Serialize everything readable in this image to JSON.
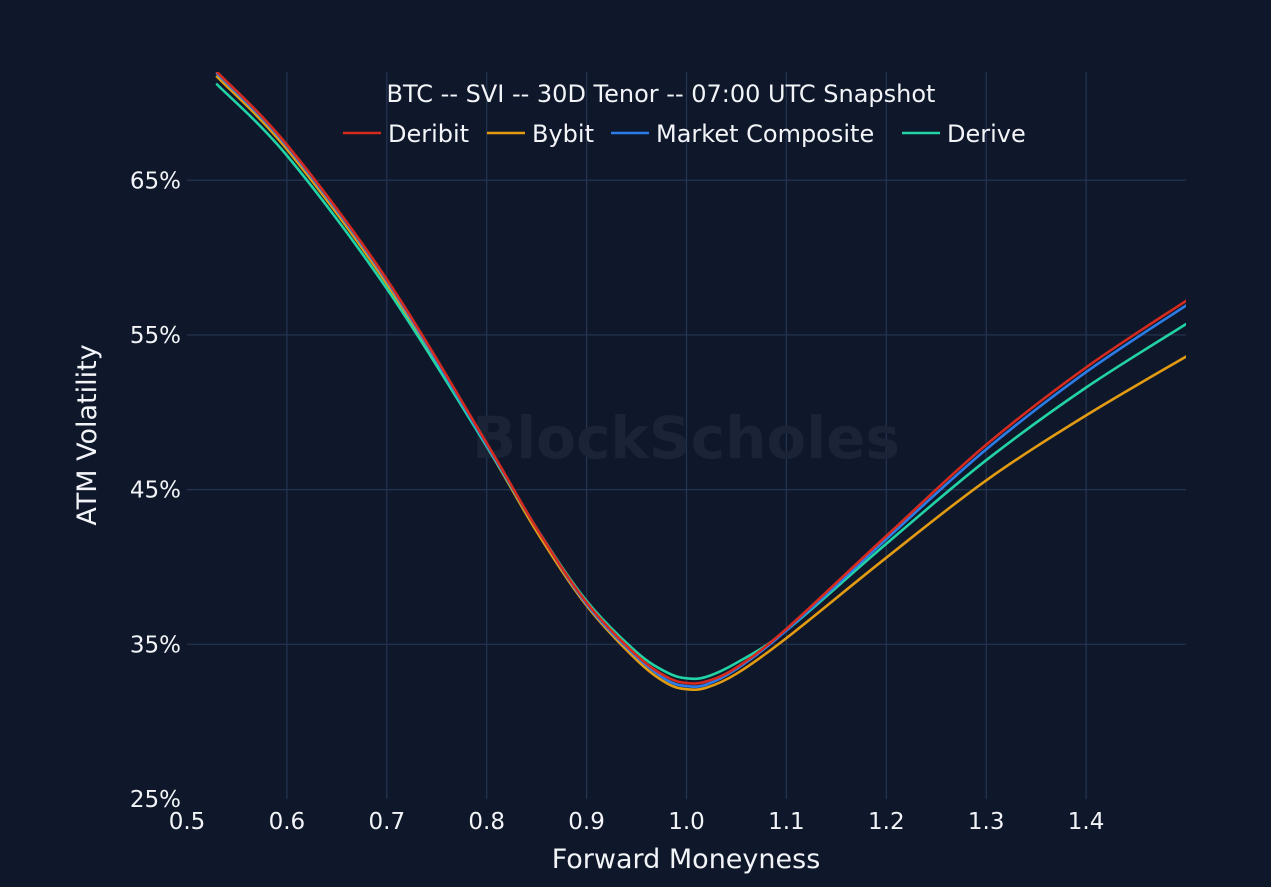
{
  "watermark": "BlockScholes",
  "chart_data": {
    "type": "line",
    "title": "BTC -- SVI -- 30D Tenor -- 07:00 UTC Snapshot",
    "xlabel": "Forward Moneyness",
    "ylabel": "ATM Volatility",
    "xlim": [
      0.5,
      1.5
    ],
    "ylim": [
      25,
      72
    ],
    "x_ticks": [
      "0.5",
      "0.6",
      "0.7",
      "0.8",
      "0.9",
      "1.0",
      "1.1",
      "1.2",
      "1.3",
      "1.4"
    ],
    "x_tick_values": [
      0.5,
      0.6,
      0.7,
      0.8,
      0.9,
      1.0,
      1.1,
      1.2,
      1.3,
      1.4
    ],
    "y_ticks": [
      "25%",
      "35%",
      "45%",
      "55%",
      "65%"
    ],
    "y_tick_values": [
      25,
      35,
      45,
      55,
      65
    ],
    "grid": true,
    "legend_position": "top",
    "x": [
      0.53,
      0.6,
      0.7,
      0.8,
      0.85,
      0.9,
      0.95,
      0.98,
      1.0,
      1.02,
      1.05,
      1.1,
      1.2,
      1.3,
      1.4,
      1.5
    ],
    "series": [
      {
        "name": "Deribit",
        "color": "#d62a1e",
        "values": [
          72.0,
          67.3,
          58.6,
          48.0,
          42.5,
          37.7,
          34.3,
          32.9,
          32.5,
          32.6,
          33.5,
          36.0,
          42.0,
          47.9,
          52.9,
          57.2
        ]
      },
      {
        "name": "Bybit",
        "color": "#e39b12",
        "values": [
          71.7,
          67.0,
          58.3,
          47.8,
          42.3,
          37.5,
          34.0,
          32.5,
          32.1,
          32.2,
          33.1,
          35.4,
          40.6,
          45.6,
          49.8,
          53.6
        ]
      },
      {
        "name": "Market Composite",
        "color": "#2c7ce8",
        "values": [
          71.9,
          67.2,
          58.5,
          47.9,
          42.5,
          37.6,
          34.2,
          32.7,
          32.3,
          32.4,
          33.4,
          35.9,
          41.8,
          47.6,
          52.6,
          56.9
        ]
      },
      {
        "name": "Derive",
        "color": "#22d3a6",
        "values": [
          71.2,
          66.6,
          58.0,
          47.8,
          42.5,
          37.8,
          34.5,
          33.2,
          32.8,
          32.9,
          33.8,
          35.9,
          41.5,
          46.9,
          51.6,
          55.7
        ]
      }
    ]
  }
}
